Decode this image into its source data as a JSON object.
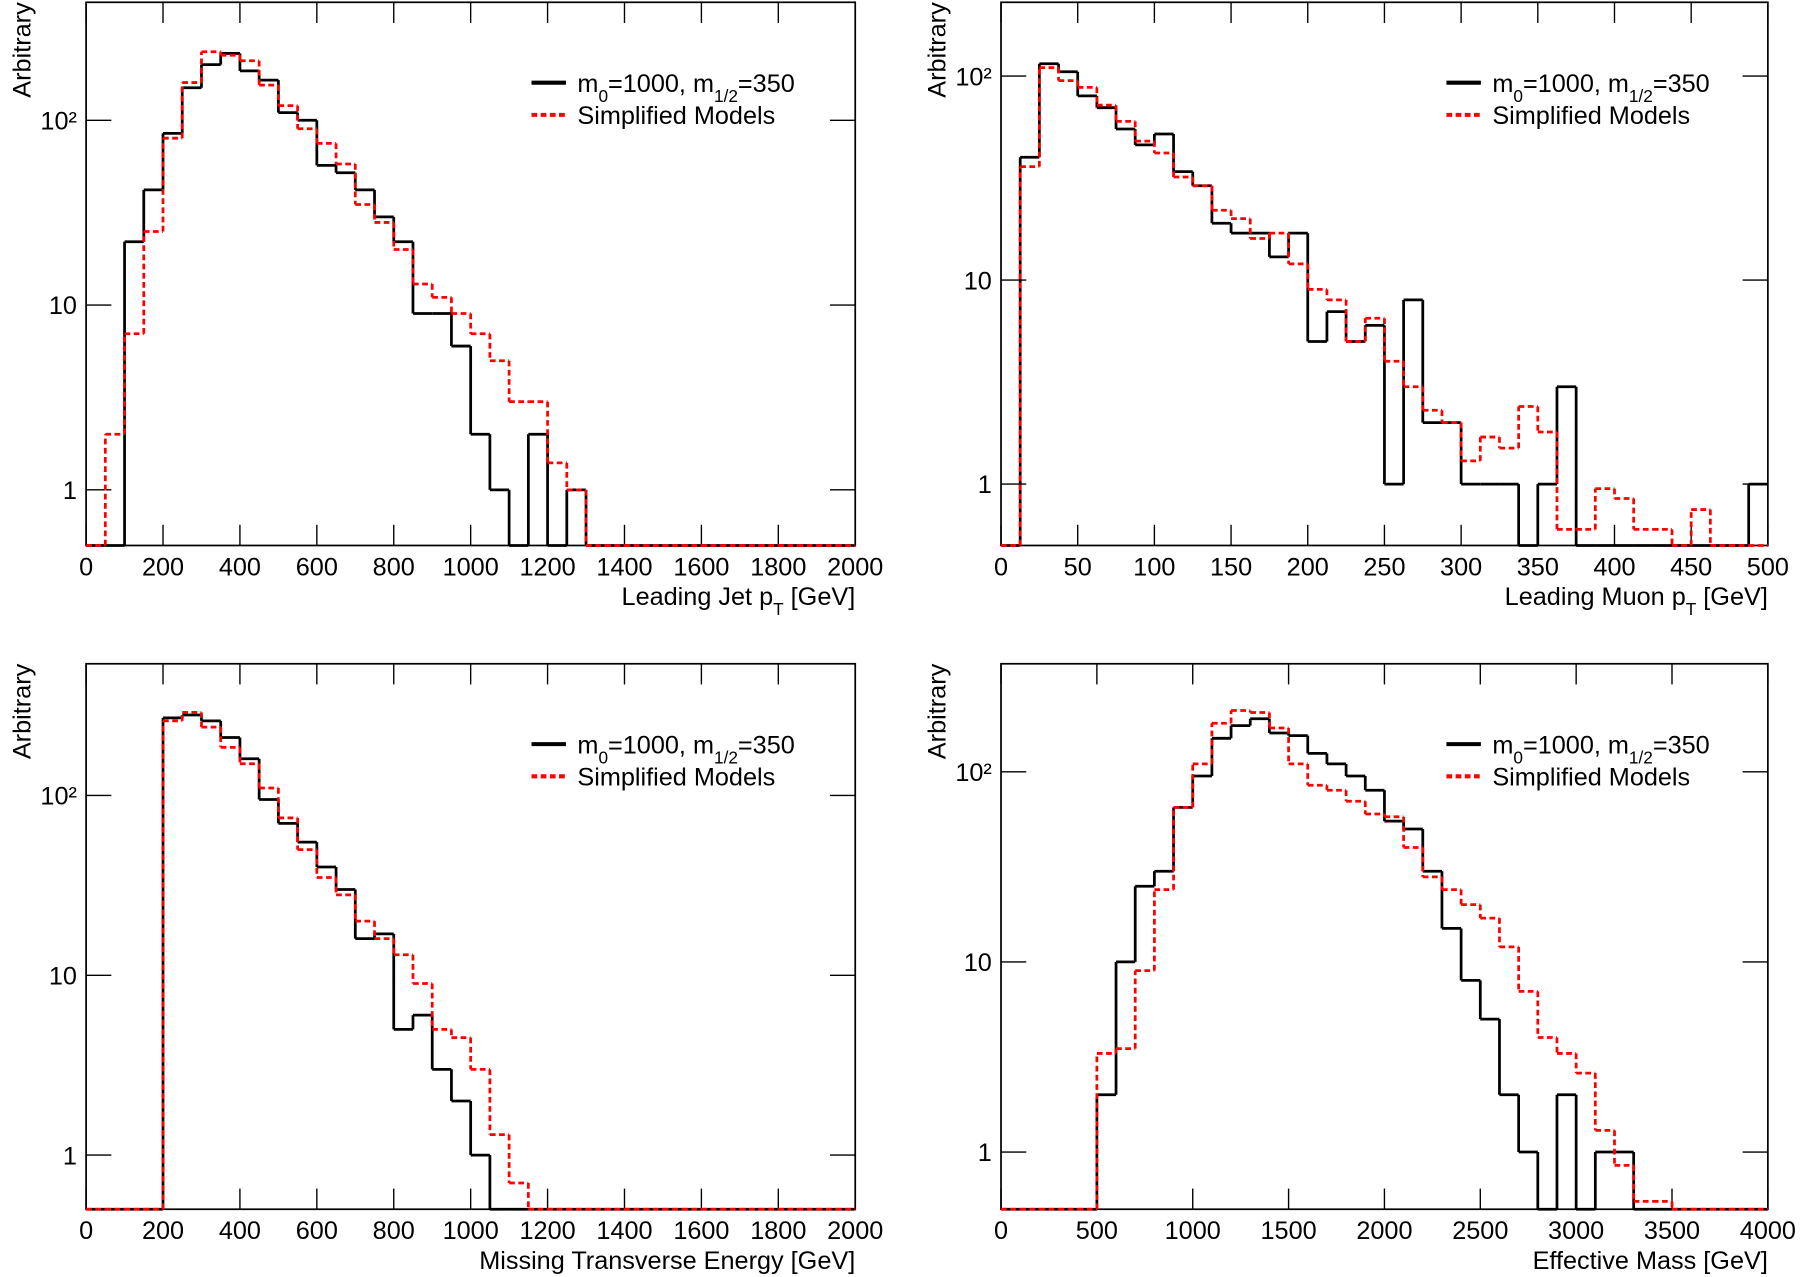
{
  "chart_data": [
    {
      "type": "histogram",
      "log_y": true,
      "legend": "upper right",
      "x_label": [
        "Leading Jet p",
        "T",
        " [GeV]"
      ],
      "y_label": "Arbitrary",
      "xlim": [
        0,
        2000
      ],
      "xticks": [
        0,
        200,
        400,
        600,
        800,
        1000,
        1200,
        1400,
        1600,
        1800,
        2000
      ],
      "ylim": [
        0.5,
        435
      ],
      "yticks": [
        1,
        10,
        {
          "value": 100,
          "label": "10²"
        }
      ],
      "bins": [
        0,
        50,
        100,
        150,
        200,
        250,
        300,
        350,
        400,
        450,
        500,
        550,
        600,
        650,
        700,
        750,
        800,
        850,
        900,
        950,
        1000,
        1050,
        1100,
        1150,
        1200,
        1250,
        1300,
        1350,
        1400,
        1450,
        1500,
        1550,
        1600,
        1650,
        1700,
        1750,
        1800,
        1850,
        1900,
        1950,
        2000
      ],
      "series": [
        {
          "name": [
            "m",
            "0",
            "=1000, m",
            "1/2",
            "=350"
          ],
          "color": "#000000",
          "style": "solid",
          "values": [
            0,
            0,
            22,
            42,
            85,
            150,
            200,
            230,
            185,
            165,
            110,
            100,
            57,
            52,
            42,
            30,
            22,
            9,
            9,
            6,
            2,
            1,
            0,
            2,
            0,
            1,
            0,
            0,
            0,
            0,
            0,
            0,
            0,
            0,
            0,
            0,
            0,
            0,
            0,
            0
          ]
        },
        {
          "name": "Simplified Models",
          "color": "#ff0000",
          "style": "dotted",
          "values": [
            0,
            2,
            7,
            25,
            80,
            160,
            235,
            225,
            210,
            155,
            120,
            90,
            75,
            58,
            35,
            28,
            20,
            13,
            11,
            9,
            7,
            5,
            3,
            3,
            1.4,
            1,
            0,
            0,
            0,
            0,
            0,
            0,
            0,
            0,
            0,
            0,
            0,
            0,
            0,
            0
          ]
        }
      ]
    },
    {
      "type": "histogram",
      "log_y": true,
      "legend": "upper right",
      "x_label": [
        "Leading Muon p",
        "T",
        " [GeV]"
      ],
      "y_label": "Arbitrary",
      "xlim": [
        0,
        500
      ],
      "xticks": [
        0,
        50,
        100,
        150,
        200,
        250,
        300,
        350,
        400,
        450,
        500
      ],
      "ylim": [
        0.5,
        230
      ],
      "yticks": [
        1,
        10,
        {
          "value": 100,
          "label": "10²"
        }
      ],
      "bins": [
        0,
        12.5,
        25,
        37.5,
        50,
        62.5,
        75,
        87.5,
        100,
        112.5,
        125,
        137.5,
        150,
        162.5,
        175,
        187.5,
        200,
        212.5,
        225,
        237.5,
        250,
        262.5,
        275,
        287.5,
        300,
        312.5,
        325,
        337.5,
        350,
        362.5,
        375,
        387.5,
        400,
        412.5,
        425,
        437.5,
        450,
        462.5,
        475,
        487.5,
        500
      ],
      "series": [
        {
          "name": [
            "m",
            "0",
            "=1000, m",
            "1/2",
            "=350"
          ],
          "color": "#000000",
          "style": "solid",
          "values": [
            0,
            40,
            115,
            105,
            80,
            70,
            55,
            46,
            52,
            34,
            29,
            19,
            17,
            17,
            13,
            17,
            5,
            7,
            5,
            6,
            1,
            8,
            2,
            2,
            1,
            1,
            1,
            0,
            1,
            3,
            0,
            0,
            0,
            0,
            0,
            0,
            0,
            0,
            0,
            1
          ]
        },
        {
          "name": "Simplified Models",
          "color": "#ff0000",
          "style": "dotted",
          "values": [
            0,
            36,
            110,
            95,
            88,
            72,
            60,
            48,
            42,
            32,
            29,
            22,
            20,
            16,
            17,
            12,
            9,
            8,
            5,
            6.5,
            4,
            3,
            2.3,
            2,
            1.3,
            1.7,
            1.5,
            2.4,
            1.8,
            0.6,
            0.6,
            0.95,
            0.85,
            0.6,
            0.6,
            0,
            0.75,
            0,
            0,
            0
          ]
        }
      ]
    },
    {
      "type": "histogram",
      "log_y": true,
      "legend": "upper right",
      "x_label": [
        "Missing Transverse Energy [GeV]"
      ],
      "y_label": "Arbitrary",
      "xlim": [
        0,
        2000
      ],
      "xticks": [
        0,
        200,
        400,
        600,
        800,
        1000,
        1200,
        1400,
        1600,
        1800,
        2000
      ],
      "ylim": [
        0.5,
        540
      ],
      "yticks": [
        1,
        10,
        {
          "value": 100,
          "label": "10²"
        }
      ],
      "bins": [
        0,
        50,
        100,
        150,
        200,
        250,
        300,
        350,
        400,
        450,
        500,
        550,
        600,
        650,
        700,
        750,
        800,
        850,
        900,
        950,
        1000,
        1050,
        1100,
        1150,
        1200,
        1250,
        1300,
        1350,
        1400,
        1450,
        1500,
        1550,
        1600,
        1650,
        1700,
        1750,
        1800,
        1850,
        1900,
        1950,
        2000
      ],
      "series": [
        {
          "name": [
            "m",
            "0",
            "=1000, m",
            "1/2",
            "=350"
          ],
          "color": "#000000",
          "style": "solid",
          "values": [
            0,
            0,
            0,
            0,
            270,
            280,
            260,
            210,
            160,
            95,
            70,
            55,
            40,
            30,
            16,
            17,
            5,
            6,
            3,
            2,
            1,
            0,
            0,
            0,
            0,
            0,
            0,
            0,
            0,
            0,
            0,
            0,
            0,
            0,
            0,
            0,
            0,
            0,
            0,
            0
          ]
        },
        {
          "name": "Simplified Models",
          "color": "#ff0000",
          "style": "dotted",
          "values": [
            0,
            0,
            0,
            0,
            260,
            290,
            240,
            185,
            150,
            110,
            75,
            50,
            35,
            28,
            20,
            16,
            13,
            9,
            5,
            4.5,
            3,
            1.3,
            0.7,
            0,
            0,
            0,
            0,
            0,
            0,
            0,
            0,
            0,
            0,
            0,
            0,
            0,
            0,
            0,
            0,
            0
          ]
        }
      ]
    },
    {
      "type": "histogram",
      "log_y": true,
      "legend": "upper right",
      "x_label": [
        "Effective Mass [GeV]"
      ],
      "y_label": "Arbitrary",
      "xlim": [
        0,
        4000
      ],
      "xticks": [
        0,
        500,
        1000,
        1500,
        2000,
        2500,
        3000,
        3500,
        4000
      ],
      "ylim": [
        0.5,
        370
      ],
      "yticks": [
        1,
        10,
        {
          "value": 100,
          "label": "10²"
        }
      ],
      "bins": [
        0,
        100,
        200,
        300,
        400,
        500,
        600,
        700,
        800,
        900,
        1000,
        1100,
        1200,
        1300,
        1400,
        1500,
        1600,
        1700,
        1800,
        1900,
        2000,
        2100,
        2200,
        2300,
        2400,
        2500,
        2600,
        2700,
        2800,
        2900,
        3000,
        3100,
        3200,
        3300,
        3400,
        3500,
        3600,
        3700,
        3800,
        3900,
        4000
      ],
      "series": [
        {
          "name": [
            "m",
            "0",
            "=1000, m",
            "1/2",
            "=350"
          ],
          "color": "#000000",
          "style": "solid",
          "values": [
            0,
            0,
            0,
            0,
            0,
            2,
            10,
            25,
            30,
            65,
            95,
            150,
            175,
            190,
            160,
            155,
            125,
            110,
            95,
            80,
            55,
            50,
            30,
            15,
            8,
            5,
            2,
            1,
            0,
            2,
            0,
            1,
            1,
            0,
            0,
            0,
            0,
            0,
            0,
            0
          ]
        },
        {
          "name": "Simplified Models",
          "color": "#ff0000",
          "style": "dotted",
          "values": [
            0,
            0,
            0,
            0,
            0,
            3.3,
            3.5,
            9,
            24,
            65,
            110,
            180,
            210,
            205,
            170,
            110,
            85,
            80,
            70,
            60,
            58,
            40,
            28,
            24,
            20,
            17,
            12,
            7,
            4,
            3.3,
            2.6,
            1.3,
            0.85,
            0.55,
            0.55,
            0,
            0,
            0,
            0,
            0
          ]
        }
      ]
    }
  ]
}
